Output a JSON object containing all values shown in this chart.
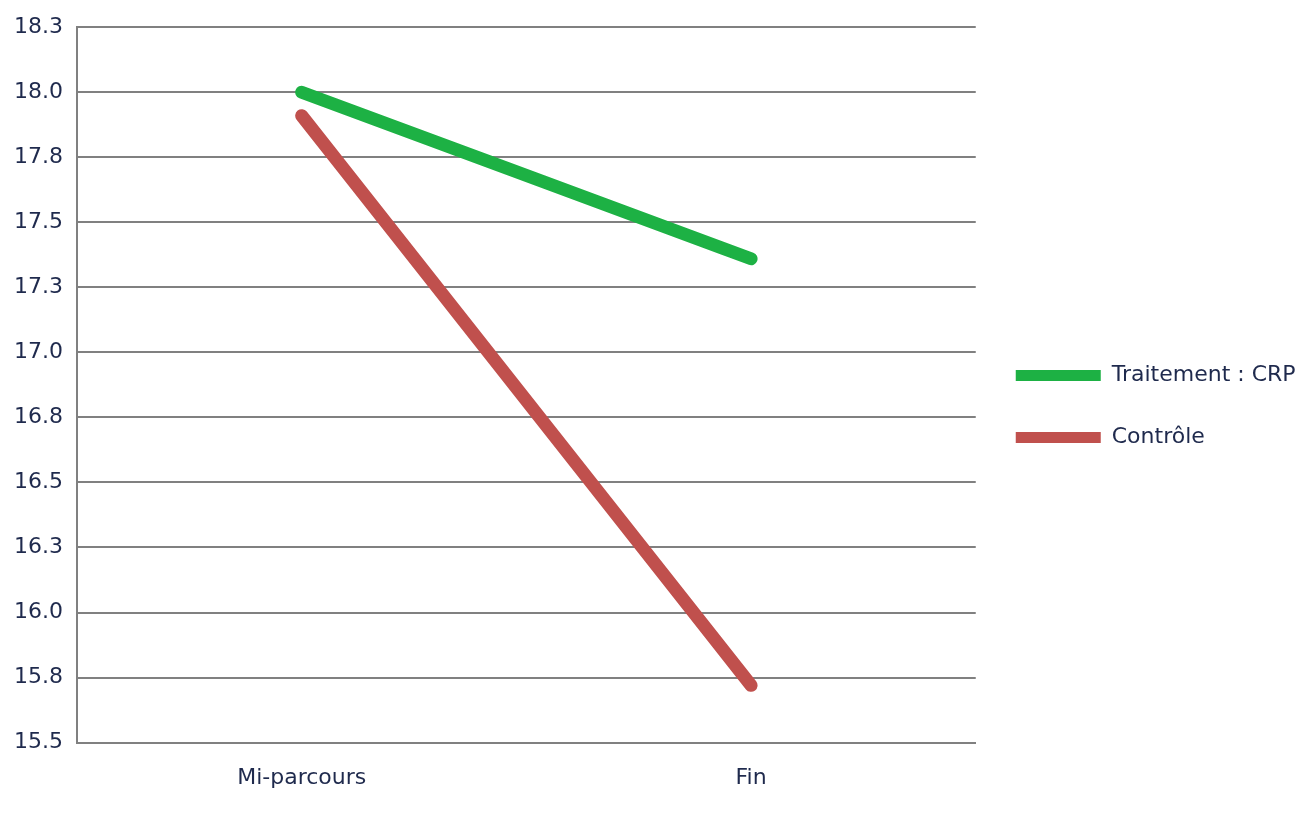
{
  "chart_data": {
    "type": "line",
    "categories": [
      "Mi-parcours",
      "Fin"
    ],
    "series": [
      {
        "name": "Traitement : CRP",
        "color": "#1db144",
        "values": [
          18.0,
          17.36
        ]
      },
      {
        "name": "Contrôle",
        "color": "#c0504d",
        "values": [
          17.91,
          15.72
        ]
      }
    ],
    "ylim": [
      15.5,
      18.25
    ],
    "yticks": [
      15.5,
      {
        "value": 15.75,
        "label": "15.8"
      },
      {
        "value": 16,
        "label": "16.0"
      },
      {
        "value": 16.25,
        "label": "16.3"
      },
      16.5,
      {
        "value": 16.75,
        "label": "16.8"
      },
      {
        "value": 17,
        "label": "17.0"
      },
      {
        "value": 17.25,
        "label": "17.3"
      },
      17.5,
      {
        "value": 17.75,
        "label": "17.8"
      },
      {
        "value": 18,
        "label": "18.0"
      },
      {
        "value": 18.25,
        "label": "18.3"
      }
    ],
    "grid": "y",
    "legend": "right",
    "marker": "none",
    "line_style": "solid"
  }
}
